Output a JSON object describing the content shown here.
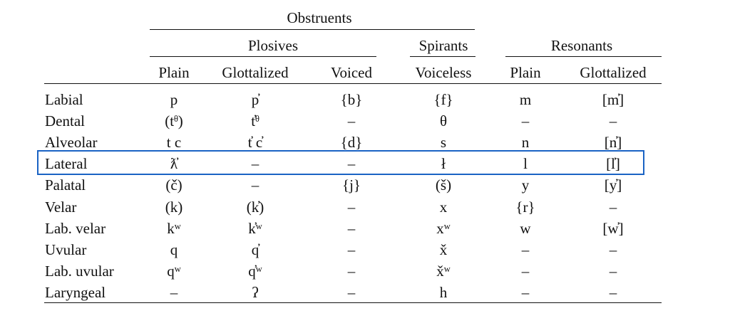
{
  "headers": {
    "obstruents": "Obstruents",
    "plosives": "Plosives",
    "spirants": "Spirants",
    "resonants": "Resonants",
    "columns": [
      "Plain",
      "Glottalized",
      "Voiced",
      "Voiceless",
      "Plain",
      "Glottalized"
    ]
  },
  "rows": [
    {
      "label": "Labial",
      "cells": [
        "p",
        "p̓",
        "{b}",
        "{f}",
        "m",
        "[m̓]"
      ]
    },
    {
      "label": "Dental",
      "cells": [
        "(tᶿ)",
        "t̓ᶿ",
        "–",
        "θ",
        "–",
        "–"
      ]
    },
    {
      "label": "Alveolar",
      "cells": [
        "t  c",
        "t̓  c̓",
        "{d}",
        "s",
        "n",
        "[n̓]"
      ]
    },
    {
      "label": "Lateral",
      "cells": [
        "ƛ̓",
        "–",
        "–",
        "ł",
        "l",
        "[l̓]"
      ]
    },
    {
      "label": "Palatal",
      "cells": [
        "(č)",
        "–",
        "{j}",
        "(š)",
        "y",
        "[y̓]"
      ]
    },
    {
      "label": "Velar",
      "cells": [
        "(k)",
        "(k̓)",
        "–",
        "x",
        "{r}",
        "–"
      ]
    },
    {
      "label": "Lab. velar",
      "cells": [
        "kʷ",
        "k̓ʷ",
        "–",
        "xʷ",
        "w",
        "[w̓]"
      ]
    },
    {
      "label": "Uvular",
      "cells": [
        "q",
        "q̓",
        "–",
        "x̌",
        "–",
        "–"
      ]
    },
    {
      "label": "Lab. uvular",
      "cells": [
        "qʷ",
        "q̓ʷ",
        "–",
        "x̌ʷ",
        "–",
        "–"
      ]
    },
    {
      "label": "Laryngeal",
      "cells": [
        "–",
        "ʔ",
        "–",
        "h",
        "–",
        "–"
      ]
    }
  ],
  "highlight": {
    "row": "Lateral",
    "color": "#1a63c4"
  }
}
